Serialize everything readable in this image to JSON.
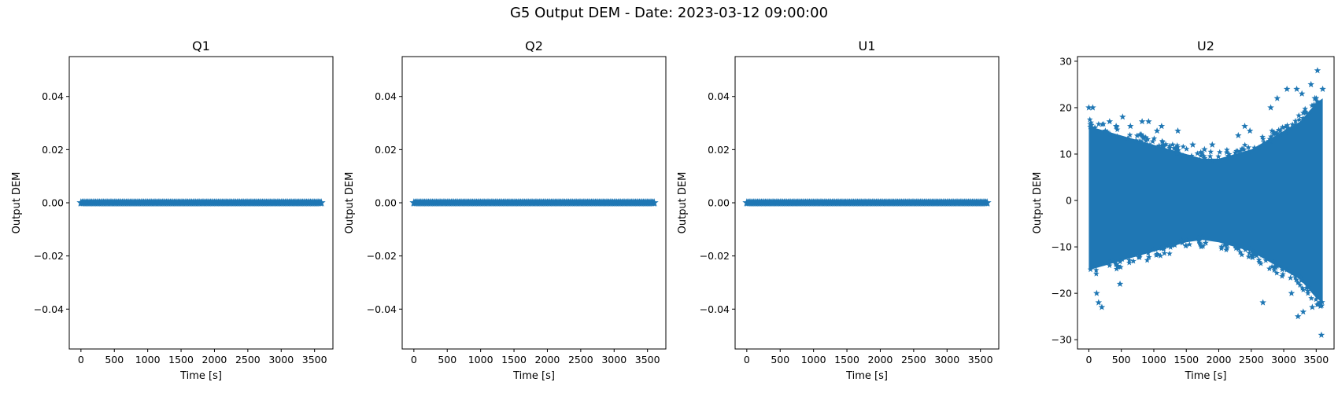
{
  "figure": {
    "title": "G5 Output DEM - Date: 2023-03-12 09:00:00"
  },
  "colors": {
    "marker": "#1f77b4",
    "axis": "#000000",
    "background": "#ffffff"
  },
  "chart_data": [
    {
      "type": "scatter",
      "marker": "star",
      "title": "Q1",
      "xlabel": "Time [s]",
      "ylabel": "Output DEM",
      "xlim": [
        -175,
        3775
      ],
      "ylim": [
        -0.055,
        0.055
      ],
      "xticks": [
        0,
        500,
        1000,
        1500,
        2000,
        2500,
        3000,
        3500
      ],
      "xtick_labels": [
        "0",
        "500",
        "1000",
        "1500",
        "2000",
        "2500",
        "3000",
        "3500"
      ],
      "yticks": [
        -0.04,
        -0.02,
        0.0,
        0.02,
        0.04
      ],
      "ytick_labels": [
        "−0.04",
        "−0.02",
        "0.00",
        "0.02",
        "0.04"
      ],
      "series": [
        {
          "x_range": [
            0,
            3600
          ],
          "y_constant": 0.0
        }
      ]
    },
    {
      "type": "scatter",
      "marker": "star",
      "title": "Q2",
      "xlabel": "Time [s]",
      "ylabel": "Output DEM",
      "xlim": [
        -175,
        3775
      ],
      "ylim": [
        -0.055,
        0.055
      ],
      "xticks": [
        0,
        500,
        1000,
        1500,
        2000,
        2500,
        3000,
        3500
      ],
      "xtick_labels": [
        "0",
        "500",
        "1000",
        "1500",
        "2000",
        "2500",
        "3000",
        "3500"
      ],
      "yticks": [
        -0.04,
        -0.02,
        0.0,
        0.02,
        0.04
      ],
      "ytick_labels": [
        "−0.04",
        "−0.02",
        "0.00",
        "0.02",
        "0.04"
      ],
      "series": [
        {
          "x_range": [
            0,
            3600
          ],
          "y_constant": 0.0
        }
      ]
    },
    {
      "type": "scatter",
      "marker": "star",
      "title": "U1",
      "xlabel": "Time [s]",
      "ylabel": "Output DEM",
      "xlim": [
        -175,
        3775
      ],
      "ylim": [
        -0.055,
        0.055
      ],
      "xticks": [
        0,
        500,
        1000,
        1500,
        2000,
        2500,
        3000,
        3500
      ],
      "xtick_labels": [
        "0",
        "500",
        "1000",
        "1500",
        "2000",
        "2500",
        "3000",
        "3500"
      ],
      "yticks": [
        -0.04,
        -0.02,
        0.0,
        0.02,
        0.04
      ],
      "ytick_labels": [
        "−0.04",
        "−0.02",
        "0.00",
        "0.02",
        "0.04"
      ],
      "series": [
        {
          "x_range": [
            0,
            3600
          ],
          "y_constant": 0.0
        }
      ]
    },
    {
      "type": "scatter",
      "marker": "star",
      "title": "U2",
      "xlabel": "Time [s]",
      "ylabel": "Output DEM",
      "xlim": [
        -175,
        3775
      ],
      "ylim": [
        -32,
        31
      ],
      "xticks": [
        0,
        500,
        1000,
        1500,
        2000,
        2500,
        3000,
        3500
      ],
      "xtick_labels": [
        "0",
        "500",
        "1000",
        "1500",
        "2000",
        "2500",
        "3000",
        "3500"
      ],
      "yticks": [
        -30,
        -20,
        -10,
        0,
        10,
        20,
        30
      ],
      "ytick_labels": [
        "−30",
        "−20",
        "−10",
        "0",
        "10",
        "20",
        "30"
      ],
      "series": [
        {
          "dense_band": {
            "x": [
              0,
              250,
              500,
              750,
              1000,
              1250,
              1500,
              1750,
              2000,
              2250,
              2500,
              2750,
              3000,
              3250,
              3500,
              3600
            ],
            "upper": [
              16,
              15,
              14,
              13,
              12,
              11,
              10,
              9,
              9,
              10,
              11,
              13,
              15,
              17,
              21,
              22
            ],
            "lower": [
              -15,
              -14,
              -13,
              -12,
              -11,
              -10,
              -9,
              -8.5,
              -9,
              -10,
              -11,
              -13,
              -15,
              -17,
              -21,
              -22
            ]
          },
          "outliers": [
            [
              0,
              20
            ],
            [
              60,
              20
            ],
            [
              120,
              -20
            ],
            [
              150,
              -22
            ],
            [
              200,
              -23
            ],
            [
              320,
              17
            ],
            [
              420,
              16
            ],
            [
              480,
              -18
            ],
            [
              520,
              18
            ],
            [
              640,
              16
            ],
            [
              820,
              17
            ],
            [
              920,
              17
            ],
            [
              1050,
              15
            ],
            [
              1120,
              16
            ],
            [
              1370,
              15
            ],
            [
              1600,
              12
            ],
            [
              1780,
              11
            ],
            [
              1900,
              12
            ],
            [
              2300,
              14
            ],
            [
              2400,
              16
            ],
            [
              2480,
              15
            ],
            [
              2680,
              -22
            ],
            [
              2800,
              20
            ],
            [
              2900,
              22
            ],
            [
              3050,
              24
            ],
            [
              3120,
              -20
            ],
            [
              3200,
              24
            ],
            [
              3220,
              -25
            ],
            [
              3280,
              23
            ],
            [
              3300,
              -24
            ],
            [
              3420,
              25
            ],
            [
              3440,
              -23
            ],
            [
              3480,
              22
            ],
            [
              3520,
              28
            ],
            [
              3560,
              -22
            ],
            [
              3580,
              -29
            ],
            [
              3600,
              24
            ]
          ]
        }
      ]
    }
  ]
}
